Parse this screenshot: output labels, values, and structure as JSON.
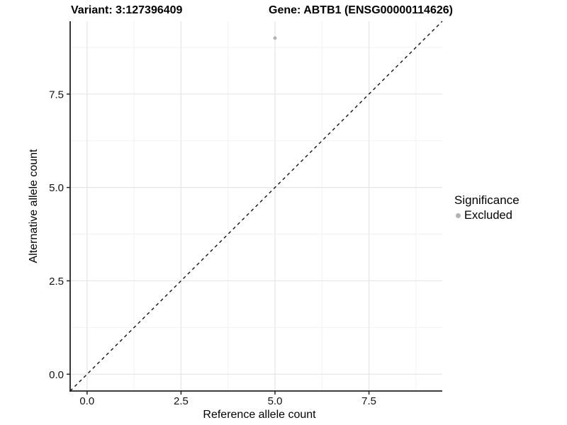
{
  "title_variant": "Variant: 3:127396409",
  "title_gene": "Gene: ABTB1 (ENSG00000114626)",
  "legend": {
    "title": "Significance",
    "items": [
      {
        "label": "Excluded",
        "color": "#b3b3b3"
      }
    ]
  },
  "chart_data": {
    "type": "scatter",
    "title": "Variant: 3:127396409   |   Gene: ABTB1 (ENSG00000114626)",
    "xlabel": "Reference allele count",
    "ylabel": "Alternative allele count",
    "xlim": [
      -0.45,
      9.45
    ],
    "ylim": [
      -0.45,
      9.45
    ],
    "x_ticks": [
      0,
      2.5,
      5,
      7.5
    ],
    "y_ticks": [
      0,
      2.5,
      5,
      7.5
    ],
    "x_minor_ticks": [
      1.25,
      3.75,
      6.25,
      8.75
    ],
    "y_minor_ticks": [
      1.25,
      3.75,
      6.25,
      8.75
    ],
    "grid": true,
    "legend_title": "Significance",
    "legend_position": "right",
    "series": [
      {
        "name": "Excluded",
        "color": "#b3b3b3",
        "points": [
          {
            "x": 5,
            "y": 9
          }
        ]
      }
    ],
    "reference_line": {
      "equation": "y = x",
      "from": [
        -0.45,
        -0.45
      ],
      "to": [
        9.45,
        9.45
      ],
      "style": "dashed",
      "color": "#111111"
    }
  },
  "colors": {
    "background": "#ffffff",
    "grid_major": "#e6e6e6",
    "grid_minor": "#f2f2f2",
    "axis": "#222222",
    "tick_text": "#111111",
    "point": "#b3b3b3"
  }
}
